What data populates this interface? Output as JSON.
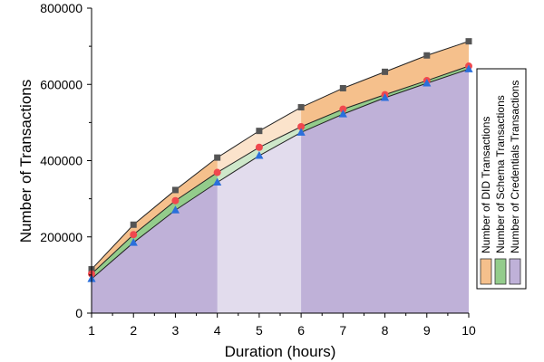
{
  "chart_data": {
    "type": "area",
    "xlabel": "Duration (hours)",
    "ylabel": "Number of Transactions",
    "x": [
      1,
      2,
      3,
      4,
      5,
      6,
      7,
      8,
      9,
      10
    ],
    "xlim": [
      1,
      10
    ],
    "ylim": [
      0,
      800000
    ],
    "xticks": [
      1,
      2,
      3,
      4,
      5,
      6,
      7,
      8,
      9,
      10
    ],
    "yticks": [
      0,
      200000,
      400000,
      600000,
      800000
    ],
    "ytick_labels": [
      "0",
      "200000",
      "400000",
      "600000",
      "800000"
    ],
    "highlight_range": [
      4,
      6
    ],
    "grid": false,
    "legend_placement": "right",
    "series": [
      {
        "name": "Number of DID Transactions",
        "color": "#f5c08c",
        "line_color": "#222222",
        "marker": "square",
        "marker_color": "#555555",
        "values": [
          115000,
          232000,
          323000,
          408000,
          478000,
          540000,
          590000,
          633000,
          676000,
          713000
        ]
      },
      {
        "name": "Number of Schema Transactions",
        "color": "#93cc8b",
        "line_color": "#222222",
        "marker": "circle",
        "marker_color": "#f0484e",
        "values": [
          103000,
          206000,
          295000,
          369000,
          435000,
          489000,
          535000,
          573000,
          610000,
          648000
        ]
      },
      {
        "name": "Number of Credentials Transactions",
        "color": "#bfb1d8",
        "line_color": "#222222",
        "marker": "triangle",
        "marker_color": "#2a6fdb",
        "values": [
          90000,
          185000,
          270000,
          343000,
          413000,
          474000,
          522000,
          565000,
          603000,
          640000
        ]
      }
    ]
  }
}
